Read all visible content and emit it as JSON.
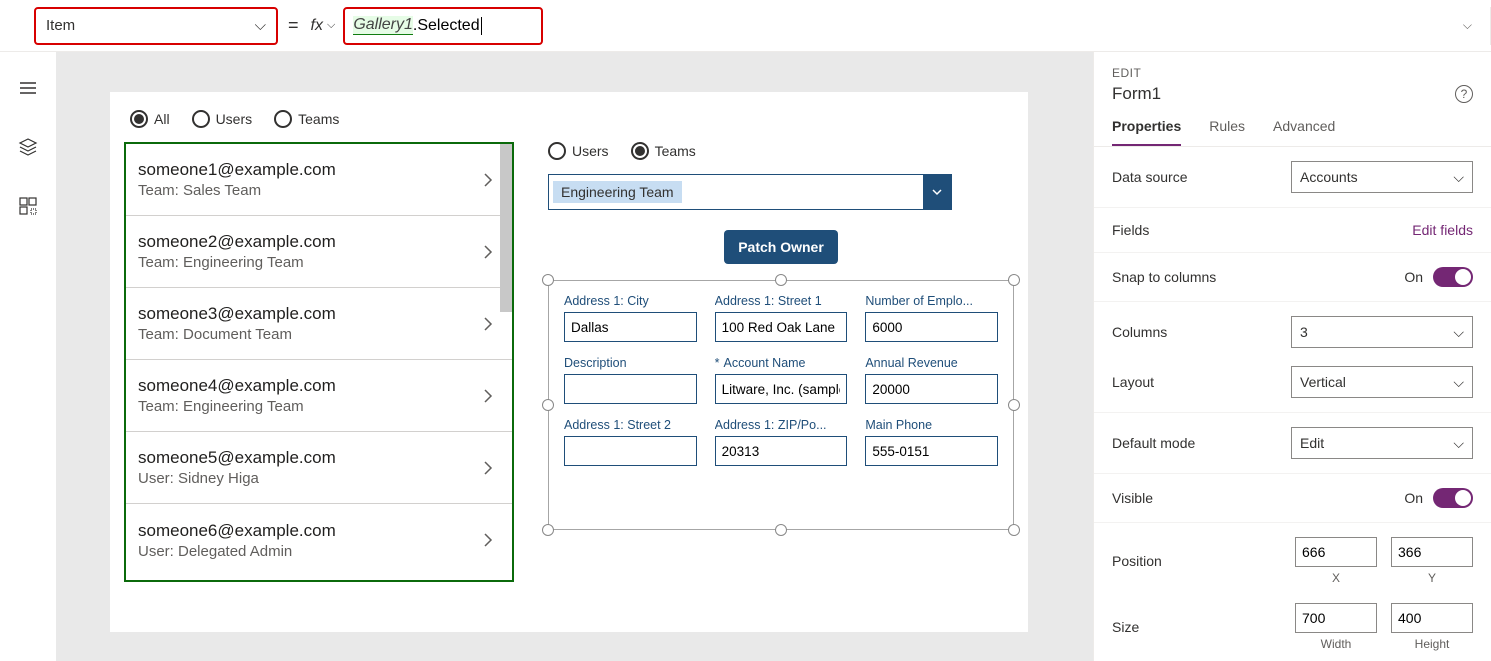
{
  "formula_bar": {
    "property": "Item",
    "formula_token1": "Gallery1",
    "formula_token2": ".Selected"
  },
  "canvas": {
    "filter1": {
      "options": [
        "All",
        "Users",
        "Teams"
      ],
      "selected": 0
    },
    "filter2": {
      "options": [
        "Users",
        "Teams"
      ],
      "selected": 1
    },
    "combo_value": "Engineering Team",
    "button": "Patch Owner",
    "gallery": [
      {
        "email": "someone1@example.com",
        "sub": "Team: Sales Team"
      },
      {
        "email": "someone2@example.com",
        "sub": "Team: Engineering Team"
      },
      {
        "email": "someone3@example.com",
        "sub": "Team: Document Team"
      },
      {
        "email": "someone4@example.com",
        "sub": "Team: Engineering Team"
      },
      {
        "email": "someone5@example.com",
        "sub": "User: Sidney Higa"
      },
      {
        "email": "someone6@example.com",
        "sub": "User: Delegated Admin"
      }
    ],
    "form": [
      {
        "label": "Address 1: City",
        "value": "Dallas"
      },
      {
        "label": "Address 1: Street 1",
        "value": "100 Red Oak Lane"
      },
      {
        "label": "Number of Emplo...",
        "value": "6000"
      },
      {
        "label": "Description",
        "value": ""
      },
      {
        "label": "Account Name",
        "value": "Litware, Inc. (sample)",
        "required": true
      },
      {
        "label": "Annual Revenue",
        "value": "20000"
      },
      {
        "label": "Address 1: Street 2",
        "value": ""
      },
      {
        "label": "Address 1: ZIP/Po...",
        "value": "20313"
      },
      {
        "label": "Main Phone",
        "value": "555-0151"
      }
    ]
  },
  "panel": {
    "edit": "EDIT",
    "title": "Form1",
    "tabs": [
      "Properties",
      "Rules",
      "Advanced"
    ],
    "datasource_label": "Data source",
    "datasource_value": "Accounts",
    "fields_label": "Fields",
    "fields_link": "Edit fields",
    "snap_label": "Snap to columns",
    "snap_value": "On",
    "columns_label": "Columns",
    "columns_value": "3",
    "layout_label": "Layout",
    "layout_value": "Vertical",
    "defaultmode_label": "Default mode",
    "defaultmode_value": "Edit",
    "visible_label": "Visible",
    "visible_value": "On",
    "position_label": "Position",
    "position_x": "666",
    "position_y": "366",
    "position_xl": "X",
    "position_yl": "Y",
    "size_label": "Size",
    "size_w": "700",
    "size_h": "400",
    "size_wl": "Width",
    "size_hl": "Height"
  }
}
